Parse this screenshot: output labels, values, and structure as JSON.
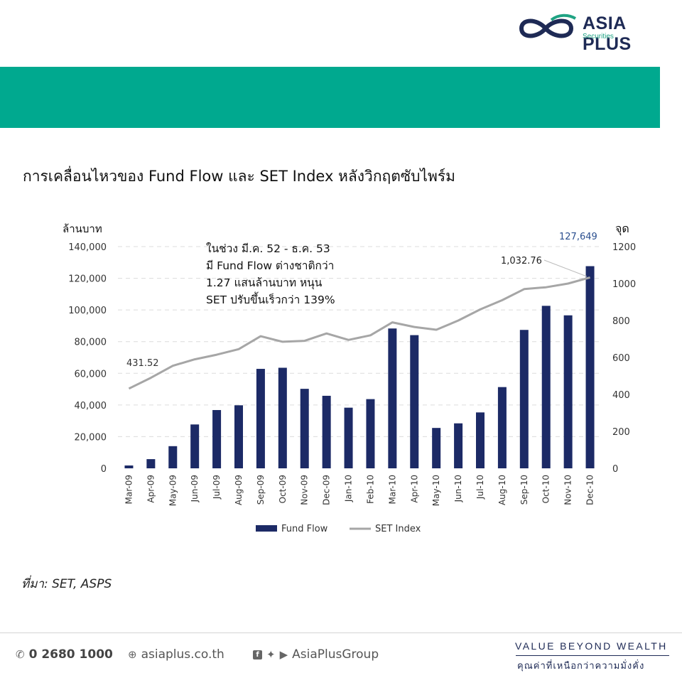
{
  "brand": {
    "name": "ASIA PLUS",
    "sub": "Securities"
  },
  "title": "การเคลื่อนไหวของ Fund Flow และ SET Index หลังวิกฤตซับไพร์ม",
  "source": "ที่มา: SET, ASPS",
  "footer": {
    "phone": "0 2680 1000",
    "website": "asiaplus.co.th",
    "social": "AsiaPlusGroup",
    "slogan": "VALUE BEYOND WEALTH",
    "slogan_th": "คุณค่าที่เหนือกว่าความมั่งคั่ง"
  },
  "colors": {
    "bar": "#1c2a66",
    "line": "#a6a6a6",
    "banner": "#00a98f",
    "accent_label": "#2b4f8f"
  },
  "chart_data": {
    "type": "bar+line",
    "categories": [
      "Mar-09",
      "Apr-09",
      "May-09",
      "Jun-09",
      "Jul-09",
      "Aug-09",
      "Sep-09",
      "Oct-09",
      "Nov-09",
      "Dec-09",
      "Jan-10",
      "Feb-10",
      "Mar-10",
      "Apr-10",
      "May-10",
      "Jun-10",
      "Jul-10",
      "Aug-10",
      "Sep-10",
      "Oct-10",
      "Nov-10",
      "Dec-10"
    ],
    "series": [
      {
        "name": "Fund Flow",
        "kind": "bar",
        "axis": "left",
        "values": [
          1800,
          5800,
          14000,
          27700,
          36800,
          39800,
          62800,
          63500,
          50200,
          45800,
          38300,
          43700,
          88300,
          84100,
          25500,
          28400,
          35300,
          51300,
          87400,
          102600,
          96600,
          127649
        ]
      },
      {
        "name": "SET Index",
        "kind": "line",
        "axis": "right",
        "values": [
          431.52,
          490,
          555,
          590,
          615,
          645,
          715,
          685,
          690,
          730,
          695,
          720,
          790,
          765,
          750,
          800,
          860,
          910,
          970,
          980,
          1000,
          1032.76
        ]
      }
    ],
    "left_axis": {
      "label": "ล้านบาท",
      "ylim": [
        0,
        140000
      ],
      "ticks": [
        "0",
        "20,000",
        "40,000",
        "60,000",
        "80,000",
        "100,000",
        "120,000",
        "140,000"
      ]
    },
    "right_axis": {
      "label": "จุด",
      "ylim": [
        0,
        1200
      ],
      "ticks": [
        "0",
        "200",
        "400",
        "600",
        "800",
        "1000",
        "1200"
      ]
    },
    "annotations": {
      "first_point": "431.52",
      "last_point": "1,032.76",
      "last_bar": "127,649",
      "note": [
        "ในช่วง มี.ค. 52 - ธ.ค. 53",
        "มี Fund Flow ต่างชาติกว่า",
        "1.27 แสนล้านบาท หนุน",
        "SET ปรับขึ้นเร็วกว่า 139%"
      ]
    },
    "grid": true,
    "legend_position": "bottom"
  }
}
